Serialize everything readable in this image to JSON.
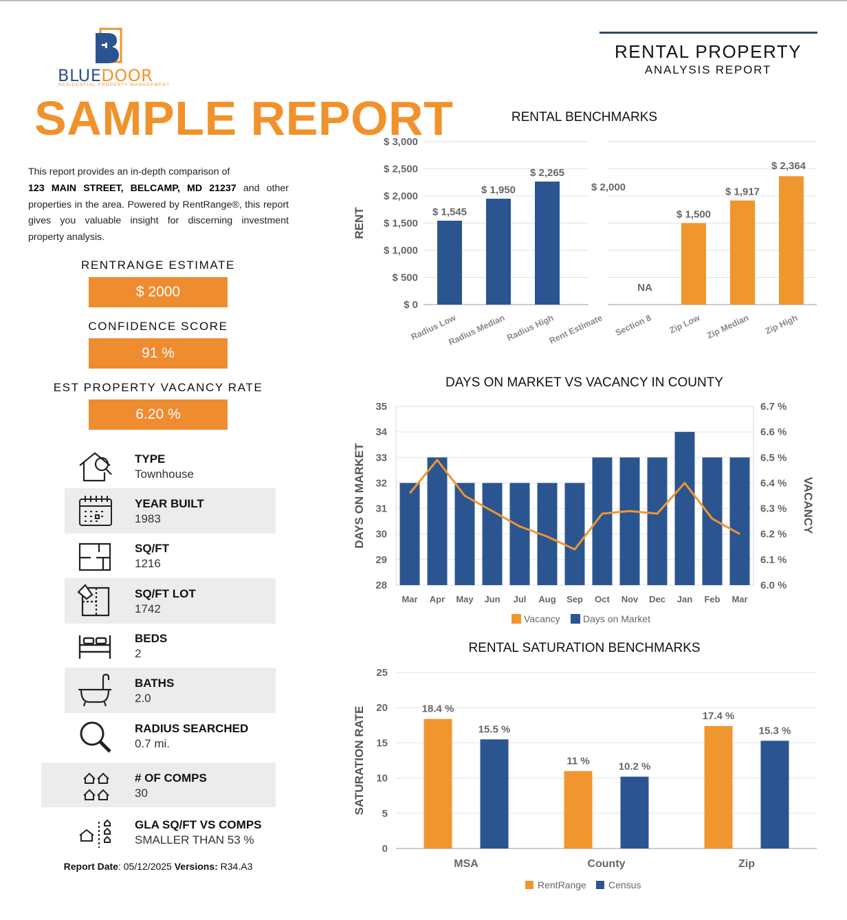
{
  "logo": {
    "wordmark_left": "BLUE",
    "wordmark_right": "DOOR",
    "tagline": "RESIDENTIAL PROPERTY MANAGEMENT"
  },
  "watermark": "SAMPLE REPORT",
  "header": {
    "title": "RENTAL PROPERTY",
    "subtitle": "ANALYSIS REPORT"
  },
  "intro": {
    "before": "This report provides an in-depth comparison of",
    "address": "123 MAIN STREET, BELCAMP, MD 21237",
    "after": "and  other properties in the area. Powered by RentRange®, this report gives you valuable insight for discerning investment property analysis."
  },
  "metrics": [
    {
      "label": "RENTRANGE ESTIMATE",
      "value": "$ 2000"
    },
    {
      "label": "CONFIDENCE SCORE",
      "value": "91 %"
    },
    {
      "label": "EST PROPERTY VACANCY RATE",
      "value": "6.20 %"
    }
  ],
  "properties": [
    {
      "title": "TYPE",
      "value": "Townhouse",
      "icon": "house-search-icon"
    },
    {
      "title": "YEAR BUILT",
      "value": "1983",
      "icon": "calendar-icon"
    },
    {
      "title": "SQ/FT",
      "value": "1216",
      "icon": "floorplan-icon"
    },
    {
      "title": "SQ/FT LOT",
      "value": "1742",
      "icon": "lot-plan-icon"
    },
    {
      "title": "BEDS",
      "value": "2",
      "icon": "bed-icon"
    },
    {
      "title": "BATHS",
      "value": "2.0",
      "icon": "bathtub-icon"
    },
    {
      "title": "RADIUS SEARCHED",
      "value": "0.7 mi.",
      "icon": "magnifier-icon"
    },
    {
      "title": "# OF COMPS",
      "value": "30",
      "icon": "houses-icon"
    },
    {
      "title": "GLA SQ/FT VS COMPS",
      "value": "SMALLER THAN 53 %",
      "icon": "house-compare-icon"
    }
  ],
  "footer": {
    "date_label": "Report Date",
    "date_value": ": 05/12/2025 ",
    "version_label": "Versions:",
    "version_value": " R34.A3"
  },
  "colors": {
    "blue": "#2b5590",
    "orange": "#f0962f",
    "line": "#f0962f"
  },
  "chart_data": [
    {
      "type": "bar",
      "title": "RENTAL BENCHMARKS",
      "ylabel": "RENT",
      "ylim": [
        0,
        3000
      ],
      "yticks": [
        "$ 0",
        "$ 500",
        "$ 1,000",
        "$ 1,500",
        "$ 2,000",
        "$ 2,500",
        "$ 3,000"
      ],
      "categories": [
        "Radius Low",
        "Radius Median",
        "Radius High",
        "Rent Estimate",
        "Section 8",
        "Zip Low",
        "Zip Median",
        "Zip High"
      ],
      "values": [
        1545,
        1950,
        2265,
        2000,
        null,
        1500,
        1917,
        2364
      ],
      "labels": [
        "$ 1,545",
        "$ 1,950",
        "$ 2,265",
        "$ 2,000",
        "NA",
        "$ 1,500",
        "$ 1,917",
        "$ 2,364"
      ],
      "bar_colors": [
        "blue",
        "blue",
        "blue",
        "none",
        "none",
        "orange",
        "orange",
        "orange"
      ]
    },
    {
      "type": "bar",
      "title": "DAYS ON MARKET VS VACANCY IN COUNTY",
      "ylabel": "DAYS ON MARKET",
      "y2label": "VACANCY",
      "ylim": [
        28,
        35
      ],
      "y2lim": [
        6.0,
        6.7
      ],
      "yticks": [
        "28",
        "29",
        "30",
        "31",
        "32",
        "33",
        "34",
        "35"
      ],
      "y2ticks": [
        "6.0 %",
        "6.1 %",
        "6.2 %",
        "6.3 %",
        "6.4 %",
        "6.5 %",
        "6.6 %",
        "6.7 %"
      ],
      "categories": [
        "Mar",
        "Apr",
        "May",
        "Jun",
        "Jul",
        "Aug",
        "Sep",
        "Oct",
        "Nov",
        "Dec",
        "Jan",
        "Feb",
        "Mar"
      ],
      "series": [
        {
          "name": "Days on Market",
          "kind": "bar",
          "values": [
            32,
            33,
            32,
            32,
            32,
            32,
            32,
            33,
            33,
            33,
            34,
            33,
            33
          ]
        },
        {
          "name": "Vacancy",
          "kind": "line",
          "values": [
            6.36,
            6.49,
            6.35,
            6.29,
            6.23,
            6.19,
            6.14,
            6.28,
            6.29,
            6.28,
            6.4,
            6.26,
            6.2
          ]
        }
      ],
      "legend": [
        "Vacancy",
        "Days on Market"
      ]
    },
    {
      "type": "bar",
      "title": "RENTAL SATURATION BENCHMARKS",
      "ylabel": "SATURATION RATE",
      "ylim": [
        0,
        25
      ],
      "yticks": [
        "0",
        "5",
        "10",
        "15",
        "20",
        "25"
      ],
      "categories": [
        "MSA",
        "County",
        "Zip"
      ],
      "series": [
        {
          "name": "RentRange",
          "values": [
            18.4,
            11,
            17.4
          ],
          "labels": [
            "18.4 %",
            "11 %",
            "17.4 %"
          ]
        },
        {
          "name": "Census",
          "values": [
            15.5,
            10.2,
            15.3
          ],
          "labels": [
            "15.5 %",
            "10.2 %",
            "15.3 %"
          ]
        }
      ],
      "legend": [
        "RentRange",
        "Census"
      ]
    }
  ]
}
